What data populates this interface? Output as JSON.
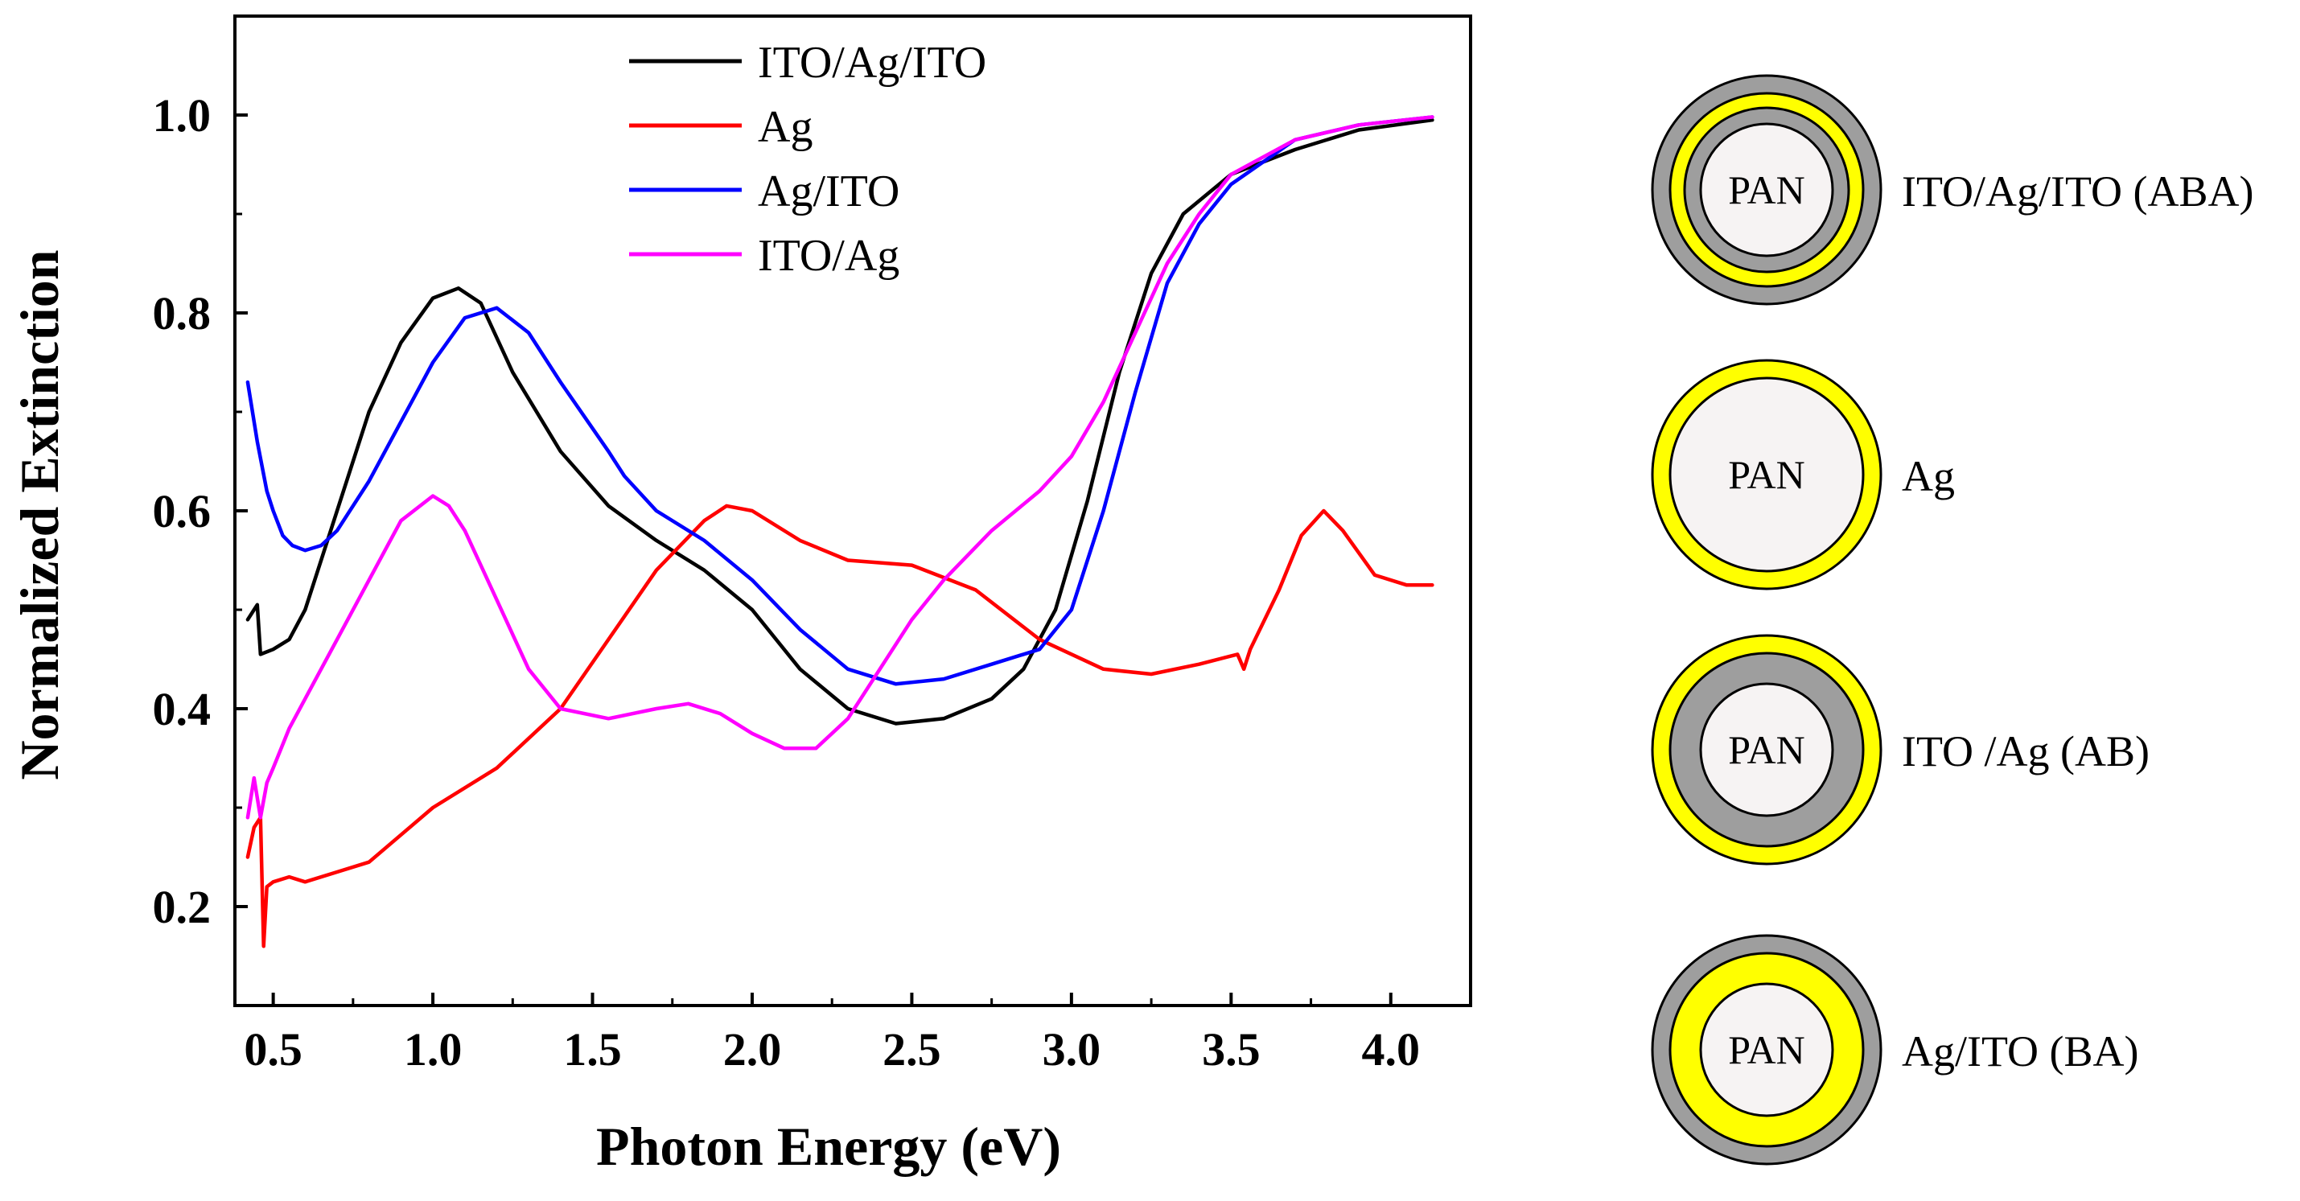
{
  "colors": {
    "ITO/Ag/ITO": "#000000",
    "Ag": "#ff0000",
    "Ag/ITO": "#0000ff",
    "ITO/Ag": "#ff00ff",
    "ito_shell": "#9e9e9e",
    "ag_shell": "#ffff00",
    "pan_core": "#f6f3f3"
  },
  "chart_data": {
    "type": "line",
    "xlabel": "Photon Energy (eV)",
    "ylabel": "Normalized Extinction",
    "xlim": [
      0.38,
      4.25
    ],
    "ylim": [
      0.1,
      1.1
    ],
    "xticks": [
      "0.5",
      "1.0",
      "1.5",
      "2.0",
      "2.5",
      "3.0",
      "3.5",
      "4.0"
    ],
    "xtick_values": [
      0.5,
      1.0,
      1.5,
      2.0,
      2.5,
      3.0,
      3.5,
      4.0
    ],
    "yticks": [
      "0.2",
      "0.4",
      "0.6",
      "0.8",
      "1.0"
    ],
    "ytick_values": [
      0.2,
      0.4,
      0.6,
      0.8,
      1.0
    ],
    "legend_position": "top-center",
    "series": [
      {
        "name": "ITO/Ag/ITO",
        "x": [
          0.42,
          0.44,
          0.45,
          0.46,
          0.5,
          0.55,
          0.6,
          0.7,
          0.8,
          0.9,
          1.0,
          1.08,
          1.15,
          1.25,
          1.4,
          1.55,
          1.7,
          1.85,
          2.0,
          2.15,
          2.3,
          2.45,
          2.6,
          2.75,
          2.85,
          2.95,
          3.05,
          3.15,
          3.25,
          3.35,
          3.5,
          3.7,
          3.9,
          4.13
        ],
        "values": [
          0.49,
          0.5,
          0.505,
          0.455,
          0.46,
          0.47,
          0.5,
          0.6,
          0.7,
          0.77,
          0.815,
          0.825,
          0.81,
          0.74,
          0.66,
          0.605,
          0.57,
          0.54,
          0.5,
          0.44,
          0.4,
          0.385,
          0.39,
          0.41,
          0.44,
          0.5,
          0.61,
          0.74,
          0.84,
          0.9,
          0.94,
          0.965,
          0.985,
          0.995
        ]
      },
      {
        "name": "Ag",
        "x": [
          0.42,
          0.44,
          0.46,
          0.47,
          0.48,
          0.5,
          0.55,
          0.6,
          0.7,
          0.8,
          1.0,
          1.2,
          1.4,
          1.55,
          1.7,
          1.85,
          1.92,
          2.0,
          2.15,
          2.3,
          2.5,
          2.7,
          2.9,
          3.1,
          3.25,
          3.4,
          3.52,
          3.54,
          3.56,
          3.65,
          3.72,
          3.79,
          3.85,
          3.95,
          4.05,
          4.13
        ],
        "values": [
          0.25,
          0.28,
          0.29,
          0.16,
          0.22,
          0.225,
          0.23,
          0.225,
          0.235,
          0.245,
          0.3,
          0.34,
          0.4,
          0.47,
          0.54,
          0.59,
          0.605,
          0.6,
          0.57,
          0.55,
          0.545,
          0.52,
          0.47,
          0.44,
          0.435,
          0.445,
          0.455,
          0.44,
          0.46,
          0.52,
          0.575,
          0.6,
          0.58,
          0.535,
          0.525,
          0.525
        ]
      },
      {
        "name": "Ag/ITO",
        "x": [
          0.42,
          0.45,
          0.48,
          0.5,
          0.53,
          0.56,
          0.6,
          0.65,
          0.7,
          0.8,
          0.9,
          1.0,
          1.1,
          1.2,
          1.3,
          1.4,
          1.55,
          1.6,
          1.7,
          1.85,
          2.0,
          2.15,
          2.3,
          2.45,
          2.6,
          2.75,
          2.9,
          3.0,
          3.1,
          3.2,
          3.3,
          3.4,
          3.5,
          3.7,
          3.9,
          4.13
        ],
        "values": [
          0.73,
          0.67,
          0.62,
          0.6,
          0.575,
          0.565,
          0.56,
          0.565,
          0.58,
          0.63,
          0.69,
          0.75,
          0.795,
          0.805,
          0.78,
          0.73,
          0.66,
          0.635,
          0.6,
          0.57,
          0.53,
          0.48,
          0.44,
          0.425,
          0.43,
          0.445,
          0.46,
          0.5,
          0.6,
          0.72,
          0.83,
          0.89,
          0.93,
          0.975,
          0.99,
          0.998
        ]
      },
      {
        "name": "ITO/Ag",
        "x": [
          0.42,
          0.44,
          0.45,
          0.46,
          0.48,
          0.5,
          0.55,
          0.6,
          0.7,
          0.8,
          0.9,
          1.0,
          1.05,
          1.1,
          1.2,
          1.3,
          1.4,
          1.55,
          1.7,
          1.8,
          1.9,
          2.0,
          2.1,
          2.2,
          2.3,
          2.4,
          2.5,
          2.6,
          2.75,
          2.9,
          3.0,
          3.1,
          3.2,
          3.3,
          3.4,
          3.5,
          3.7,
          3.9,
          4.13
        ],
        "values": [
          0.29,
          0.33,
          0.31,
          0.29,
          0.325,
          0.34,
          0.38,
          0.41,
          0.47,
          0.53,
          0.59,
          0.615,
          0.605,
          0.58,
          0.51,
          0.44,
          0.4,
          0.39,
          0.4,
          0.405,
          0.395,
          0.375,
          0.36,
          0.36,
          0.39,
          0.44,
          0.49,
          0.53,
          0.58,
          0.62,
          0.655,
          0.71,
          0.78,
          0.85,
          0.9,
          0.94,
          0.975,
          0.99,
          0.998
        ]
      }
    ]
  },
  "schematics": [
    {
      "core": "PAN",
      "label": "ITO/Ag/ITO (ABA)",
      "shells": [
        "ito_shell",
        "ag_shell",
        "ito_shell"
      ]
    },
    {
      "core": "PAN",
      "label": "Ag",
      "shells": [
        "ag_shell"
      ]
    },
    {
      "core": "PAN",
      "label": "ITO /Ag (AB)",
      "shells": [
        "ag_shell",
        "ito_shell"
      ]
    },
    {
      "core": "PAN",
      "label": "Ag/ITO (BA)",
      "shells": [
        "ito_shell",
        "ag_shell"
      ]
    }
  ]
}
